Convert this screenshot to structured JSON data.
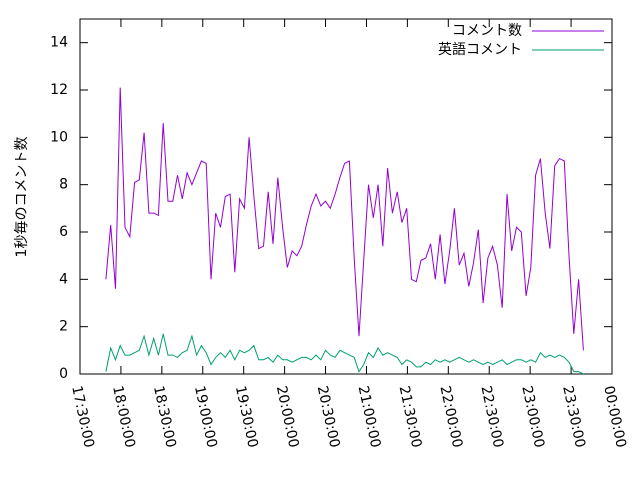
{
  "chart_data": {
    "type": "line",
    "y_label": "1秒毎のコメント数",
    "x": [
      "17:49:00",
      "17:52:30",
      "17:56:00",
      "17:59:30",
      "18:03:00",
      "18:06:30",
      "18:10:00",
      "18:13:30",
      "18:17:00",
      "18:20:30",
      "18:24:00",
      "18:27:30",
      "18:31:00",
      "18:34:30",
      "18:38:00",
      "18:41:30",
      "18:45:00",
      "18:48:30",
      "18:52:00",
      "18:55:30",
      "18:59:00",
      "19:02:30",
      "19:06:00",
      "19:09:30",
      "19:13:00",
      "19:16:30",
      "19:20:00",
      "19:23:30",
      "19:27:00",
      "19:30:30",
      "19:34:00",
      "19:37:30",
      "19:41:00",
      "19:44:30",
      "19:48:00",
      "19:51:30",
      "19:55:00",
      "19:58:30",
      "20:02:00",
      "20:05:30",
      "20:09:00",
      "20:12:30",
      "20:16:00",
      "20:19:30",
      "20:23:00",
      "20:26:30",
      "20:30:00",
      "20:33:30",
      "20:37:00",
      "20:40:30",
      "20:44:00",
      "20:47:30",
      "20:51:00",
      "20:54:30",
      "20:58:00",
      "21:01:30",
      "21:05:00",
      "21:08:30",
      "21:12:00",
      "21:15:30",
      "21:19:00",
      "21:22:30",
      "21:26:00",
      "21:29:30",
      "21:33:00",
      "21:36:30",
      "21:40:00",
      "21:43:30",
      "21:47:00",
      "21:50:30",
      "21:54:00",
      "21:57:30",
      "22:01:00",
      "22:04:30",
      "22:08:00",
      "22:11:30",
      "22:15:00",
      "22:18:30",
      "22:22:00",
      "22:25:30",
      "22:29:00",
      "22:32:30",
      "22:36:00",
      "22:39:30",
      "22:43:00",
      "22:46:30",
      "22:50:00",
      "22:53:30",
      "22:57:00",
      "23:00:30",
      "23:04:00",
      "23:07:30",
      "23:11:00",
      "23:14:30",
      "23:18:00",
      "23:21:30",
      "23:25:00",
      "23:28:30",
      "23:32:00",
      "23:35:30",
      "23:39:00"
    ],
    "series": [
      {
        "name": "コメント数",
        "color": "#9400d3",
        "values": [
          4.0,
          6.3,
          3.6,
          12.1,
          6.2,
          5.8,
          8.1,
          8.2,
          10.2,
          6.8,
          6.8,
          6.7,
          10.6,
          7.3,
          7.3,
          8.4,
          7.4,
          8.5,
          8.0,
          8.5,
          9.0,
          8.9,
          4.0,
          6.8,
          6.2,
          7.5,
          7.6,
          4.3,
          7.4,
          7.0,
          10.0,
          7.5,
          5.3,
          5.4,
          7.7,
          5.5,
          8.3,
          6.2,
          4.5,
          5.2,
          5.0,
          5.4,
          6.3,
          7.1,
          7.6,
          7.1,
          7.3,
          7.0,
          7.6,
          8.3,
          8.9,
          9.0,
          4.9,
          1.6,
          4.8,
          8.0,
          6.6,
          8.0,
          5.4,
          8.7,
          6.8,
          7.7,
          6.4,
          7.0,
          4.0,
          3.9,
          4.8,
          4.9,
          5.5,
          4.0,
          5.9,
          3.8,
          5.2,
          7.0,
          4.6,
          5.1,
          3.7,
          4.7,
          6.1,
          3.0,
          4.9,
          5.4,
          4.6,
          2.8,
          7.6,
          5.2,
          6.2,
          6.0,
          3.3,
          4.5,
          8.4,
          9.1,
          6.8,
          5.3,
          8.8,
          9.1,
          9.0,
          5.0,
          1.7,
          4.0,
          1.0
        ]
      },
      {
        "name": "英語コメント",
        "color": "#009e73",
        "values": [
          0.1,
          1.1,
          0.6,
          1.2,
          0.8,
          0.8,
          0.9,
          1.0,
          1.6,
          0.8,
          1.5,
          0.8,
          1.7,
          0.8,
          0.8,
          0.7,
          0.9,
          1.0,
          1.6,
          0.8,
          1.2,
          0.9,
          0.4,
          0.7,
          0.9,
          0.7,
          1.0,
          0.6,
          1.0,
          0.9,
          1.0,
          1.2,
          0.6,
          0.6,
          0.7,
          0.5,
          0.8,
          0.6,
          0.6,
          0.5,
          0.6,
          0.7,
          0.7,
          0.6,
          0.8,
          0.6,
          1.0,
          0.8,
          0.7,
          1.0,
          0.9,
          0.8,
          0.7,
          0.1,
          0.4,
          0.9,
          0.7,
          1.1,
          0.8,
          0.9,
          0.8,
          0.7,
          0.4,
          0.6,
          0.5,
          0.3,
          0.3,
          0.5,
          0.4,
          0.6,
          0.5,
          0.6,
          0.5,
          0.6,
          0.7,
          0.6,
          0.5,
          0.6,
          0.5,
          0.4,
          0.5,
          0.4,
          0.5,
          0.6,
          0.4,
          0.5,
          0.6,
          0.6,
          0.5,
          0.6,
          0.5,
          0.9,
          0.7,
          0.8,
          0.7,
          0.8,
          0.7,
          0.5,
          0.1,
          0.1,
          0.0
        ]
      }
    ],
    "xlim": [
      "17:30:00",
      "00:00:00"
    ],
    "xticks": [
      "17:30:00",
      "18:00:00",
      "18:30:00",
      "19:00:00",
      "19:30:00",
      "20:00:00",
      "20:30:00",
      "21:00:00",
      "21:30:00",
      "22:00:00",
      "22:30:00",
      "23:00:00",
      "23:30:00",
      "00:00:00"
    ],
    "ylim": [
      0,
      15
    ],
    "yticks": [
      0,
      2,
      4,
      6,
      8,
      10,
      12,
      14
    ],
    "legend": "top-right"
  }
}
